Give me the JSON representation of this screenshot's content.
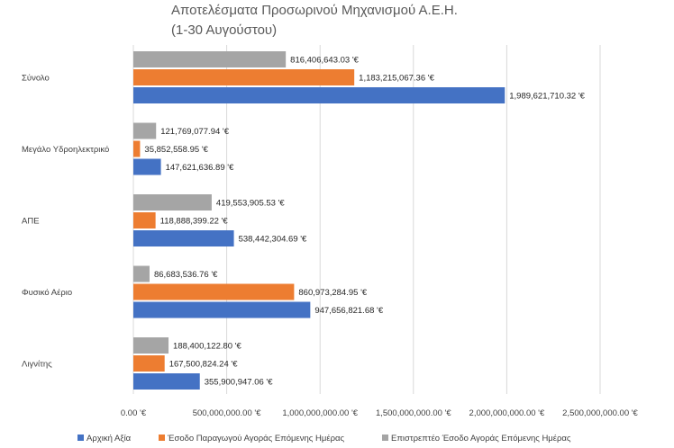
{
  "chart_data": {
    "type": "bar",
    "orientation": "horizontal",
    "title_lines": [
      "Αποτελέσματα Προσωρινού Μηχανισμού Α.Ε.Η.",
      "(1-30 Αυγούστου)"
    ],
    "categories": [
      "Σύνολο",
      "Μεγάλο Υδροηλεκτρικό",
      "ΑΠΕ",
      "Φυσικό Αέριο",
      "Λιγνίτης"
    ],
    "series": [
      {
        "name": "Επιστρεπτέο Έσοδο Αγοράς Επόμενης Ημέρας",
        "color": "#a5a5a5",
        "values": [
          816406643.03,
          121769077.94,
          419553905.53,
          86683536.76,
          188400122.8
        ],
        "labels": [
          "816,406,643.03 '€",
          "121,769,077.94 '€",
          "419,553,905.53 '€",
          "86,683,536.76 '€",
          "188,400,122.80 '€"
        ]
      },
      {
        "name": "Έσοδο Παραγωγού Αγοράς Επόμενης Ημέρας",
        "color": "#ed7d31",
        "values": [
          1183215067.36,
          35852558.95,
          118888399.22,
          860973284.95,
          167500824.24
        ],
        "labels": [
          "1,183,215,067.36 '€",
          "35,852,558.95 '€",
          "118,888,399.22 '€",
          "860,973,284.95 '€",
          "167,500,824.24 '€"
        ]
      },
      {
        "name": "Αρχική Αξία",
        "color": "#4472c4",
        "values": [
          1989621710.32,
          147621636.89,
          538442304.69,
          947656821.68,
          355900947.06
        ],
        "labels": [
          "1,989,621,710.32 '€",
          "147,621,636.89 '€",
          "538,442,304.69 '€",
          "947,656,821.68 '€",
          "355,900,947.06 '€"
        ]
      }
    ],
    "xlim": [
      0,
      2500000000
    ],
    "x_ticks": [
      0,
      500000000,
      1000000000,
      1500000000,
      2000000000,
      2500000000
    ],
    "x_tick_labels": [
      "0.00 '€",
      "500,000,000.00 '€",
      "1,000,000,000.00 '€",
      "1,500,000,000.00 '€",
      "2,000,000,000.00 '€",
      "2,500,000,000.00 '€"
    ],
    "legend": [
      {
        "name": "Αρχική Αξία",
        "color": "#4472c4"
      },
      {
        "name": "Έσοδο Παραγωγού Αγοράς Επόμενης Ημέρας",
        "color": "#ed7d31"
      },
      {
        "name": "Επιστρεπτέο Έσοδο Αγοράς Επόμενης Ημέρας",
        "color": "#a5a5a5"
      }
    ],
    "legend_position": "bottom",
    "grid": true
  }
}
